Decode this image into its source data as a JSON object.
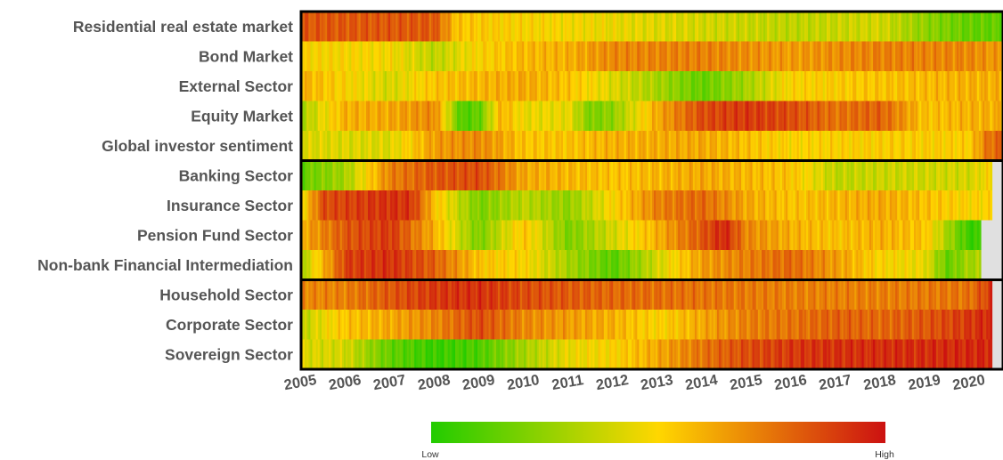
{
  "chart_data": {
    "type": "heatmap",
    "title": "",
    "rows": [
      "Residential real estate market",
      "Bond Market",
      "External Sector",
      "Equity Market",
      "Global investor sentiment",
      "Banking Sector",
      "Insurance Sector",
      "Pension Fund Sector",
      "Non-bank Financial Intermediation",
      "Household Sector",
      "Corporate Sector",
      "Sovereign Sector"
    ],
    "row_groups": [
      {
        "rows": [
          0,
          1,
          2,
          3,
          4
        ]
      },
      {
        "rows": [
          5,
          6,
          7,
          8
        ]
      },
      {
        "rows": [
          9,
          10,
          11
        ]
      }
    ],
    "x_ticks": [
      "2005",
      "2006",
      "2007",
      "2008",
      "2009",
      "2010",
      "2011",
      "2012",
      "2013",
      "2014",
      "2015",
      "2016",
      "2017",
      "2018",
      "2019",
      "2020"
    ],
    "x_range": [
      2005,
      2020.75
    ],
    "value_scale": {
      "min": 0,
      "max": 1
    },
    "color_scale": {
      "low": "#22cc00",
      "mid": "#ffd700",
      "high": "#cc1111",
      "missing": "#e0e0e0"
    },
    "legend": {
      "low_label": "Low",
      "high_label": "High",
      "position": "bottom"
    },
    "series_data_end": [
      2020.75,
      2020.75,
      2020.75,
      2020.75,
      2020.75,
      2020.5,
      2020.5,
      2020.25,
      2020.25,
      2020.5,
      2020.5,
      2020.5
    ],
    "keyframes": [
      [
        [
          2005,
          0.82
        ],
        [
          2008,
          0.82
        ],
        [
          2008.5,
          0.55
        ],
        [
          2010,
          0.5
        ],
        [
          2012,
          0.45
        ],
        [
          2014,
          0.4
        ],
        [
          2016,
          0.35
        ],
        [
          2018,
          0.4
        ],
        [
          2019,
          0.25
        ],
        [
          2020,
          0.15
        ],
        [
          2020.75,
          0.15
        ]
      ],
      [
        [
          2005,
          0.5
        ],
        [
          2007,
          0.48
        ],
        [
          2008,
          0.35
        ],
        [
          2009,
          0.5
        ],
        [
          2010,
          0.58
        ],
        [
          2011,
          0.6
        ],
        [
          2012,
          0.7
        ],
        [
          2014,
          0.72
        ],
        [
          2016,
          0.65
        ],
        [
          2018,
          0.72
        ],
        [
          2020,
          0.7
        ],
        [
          2020.75,
          0.65
        ]
      ],
      [
        [
          2005,
          0.6
        ],
        [
          2007,
          0.4
        ],
        [
          2008,
          0.55
        ],
        [
          2010,
          0.62
        ],
        [
          2011,
          0.55
        ],
        [
          2012,
          0.42
        ],
        [
          2013,
          0.3
        ],
        [
          2014,
          0.15
        ],
        [
          2015,
          0.3
        ],
        [
          2016,
          0.5
        ],
        [
          2018,
          0.55
        ],
        [
          2020,
          0.6
        ],
        [
          2020.75,
          0.6
        ]
      ],
      [
        [
          2005,
          0.3
        ],
        [
          2006,
          0.6
        ],
        [
          2007,
          0.62
        ],
        [
          2008,
          0.7
        ],
        [
          2008.6,
          0.1
        ],
        [
          2009,
          0.15
        ],
        [
          2009.5,
          0.6
        ],
        [
          2010,
          0.45
        ],
        [
          2011,
          0.45
        ],
        [
          2011.5,
          0.2
        ],
        [
          2012,
          0.25
        ],
        [
          2013,
          0.62
        ],
        [
          2014,
          0.85
        ],
        [
          2015,
          0.9
        ],
        [
          2016,
          0.85
        ],
        [
          2017,
          0.75
        ],
        [
          2018,
          0.8
        ],
        [
          2019,
          0.55
        ],
        [
          2020,
          0.6
        ],
        [
          2020.75,
          0.6
        ]
      ],
      [
        [
          2005,
          0.42
        ],
        [
          2007,
          0.42
        ],
        [
          2008,
          0.65
        ],
        [
          2009,
          0.7
        ],
        [
          2010,
          0.55
        ],
        [
          2011,
          0.55
        ],
        [
          2012,
          0.6
        ],
        [
          2014,
          0.62
        ],
        [
          2016,
          0.5
        ],
        [
          2018,
          0.52
        ],
        [
          2020,
          0.52
        ],
        [
          2020.4,
          0.75
        ],
        [
          2020.75,
          0.8
        ]
      ],
      [
        [
          2005,
          0.15
        ],
        [
          2006,
          0.3
        ],
        [
          2007,
          0.72
        ],
        [
          2008,
          0.82
        ],
        [
          2009,
          0.85
        ],
        [
          2010,
          0.62
        ],
        [
          2012,
          0.55
        ],
        [
          2014,
          0.62
        ],
        [
          2016,
          0.55
        ],
        [
          2017,
          0.35
        ],
        [
          2018,
          0.38
        ],
        [
          2020,
          0.4
        ],
        [
          2020.5,
          0.5
        ]
      ],
      [
        [
          2005,
          0.45
        ],
        [
          2005.5,
          0.85
        ],
        [
          2007,
          0.92
        ],
        [
          2007.5,
          0.9
        ],
        [
          2008,
          0.55
        ],
        [
          2009,
          0.2
        ],
        [
          2010,
          0.35
        ],
        [
          2011,
          0.25
        ],
        [
          2012,
          0.5
        ],
        [
          2013,
          0.72
        ],
        [
          2014,
          0.78
        ],
        [
          2015,
          0.62
        ],
        [
          2016,
          0.55
        ],
        [
          2018,
          0.62
        ],
        [
          2020,
          0.5
        ],
        [
          2020.5,
          0.5
        ]
      ],
      [
        [
          2005,
          0.6
        ],
        [
          2006,
          0.82
        ],
        [
          2007,
          0.9
        ],
        [
          2008,
          0.6
        ],
        [
          2009,
          0.2
        ],
        [
          2010,
          0.55
        ],
        [
          2011,
          0.2
        ],
        [
          2012,
          0.4
        ],
        [
          2013,
          0.6
        ],
        [
          2014,
          0.82
        ],
        [
          2014.5,
          0.95
        ],
        [
          2015,
          0.7
        ],
        [
          2016,
          0.6
        ],
        [
          2017,
          0.55
        ],
        [
          2018,
          0.6
        ],
        [
          2019,
          0.55
        ],
        [
          2020,
          0.05
        ],
        [
          2020.25,
          0.05
        ]
      ],
      [
        [
          2005,
          0.3
        ],
        [
          2006,
          0.88
        ],
        [
          2007,
          0.92
        ],
        [
          2008,
          0.8
        ],
        [
          2009,
          0.55
        ],
        [
          2010,
          0.5
        ],
        [
          2011,
          0.3
        ],
        [
          2012,
          0.12
        ],
        [
          2013,
          0.4
        ],
        [
          2014,
          0.65
        ],
        [
          2015,
          0.72
        ],
        [
          2016,
          0.78
        ],
        [
          2017,
          0.65
        ],
        [
          2018,
          0.5
        ],
        [
          2019,
          0.45
        ],
        [
          2019.5,
          0.15
        ],
        [
          2020,
          0.3
        ],
        [
          2020.25,
          0.3
        ]
      ],
      [
        [
          2005,
          0.7
        ],
        [
          2006,
          0.72
        ],
        [
          2007,
          0.82
        ],
        [
          2008,
          0.9
        ],
        [
          2009,
          0.92
        ],
        [
          2010,
          0.85
        ],
        [
          2012,
          0.78
        ],
        [
          2014,
          0.75
        ],
        [
          2016,
          0.72
        ],
        [
          2018,
          0.72
        ],
        [
          2020,
          0.75
        ],
        [
          2020.5,
          0.9
        ]
      ],
      [
        [
          2005,
          0.35
        ],
        [
          2006,
          0.55
        ],
        [
          2007,
          0.62
        ],
        [
          2008,
          0.7
        ],
        [
          2009,
          0.85
        ],
        [
          2010,
          0.7
        ],
        [
          2011,
          0.65
        ],
        [
          2012,
          0.6
        ],
        [
          2013,
          0.5
        ],
        [
          2014,
          0.62
        ],
        [
          2015,
          0.72
        ],
        [
          2016,
          0.75
        ],
        [
          2017,
          0.8
        ],
        [
          2018,
          0.78
        ],
        [
          2019,
          0.82
        ],
        [
          2020,
          0.9
        ],
        [
          2020.5,
          0.95
        ]
      ],
      [
        [
          2005,
          0.42
        ],
        [
          2006,
          0.4
        ],
        [
          2007,
          0.15
        ],
        [
          2008,
          0.05
        ],
        [
          2009,
          0.1
        ],
        [
          2010,
          0.3
        ],
        [
          2011,
          0.45
        ],
        [
          2012,
          0.5
        ],
        [
          2013,
          0.62
        ],
        [
          2014,
          0.75
        ],
        [
          2015,
          0.85
        ],
        [
          2016,
          0.9
        ],
        [
          2017,
          0.92
        ],
        [
          2018,
          0.93
        ],
        [
          2019,
          0.93
        ],
        [
          2020,
          0.94
        ],
        [
          2020.5,
          0.95
        ]
      ]
    ]
  },
  "legend_labels": {
    "low": "Low",
    "high": "High"
  }
}
